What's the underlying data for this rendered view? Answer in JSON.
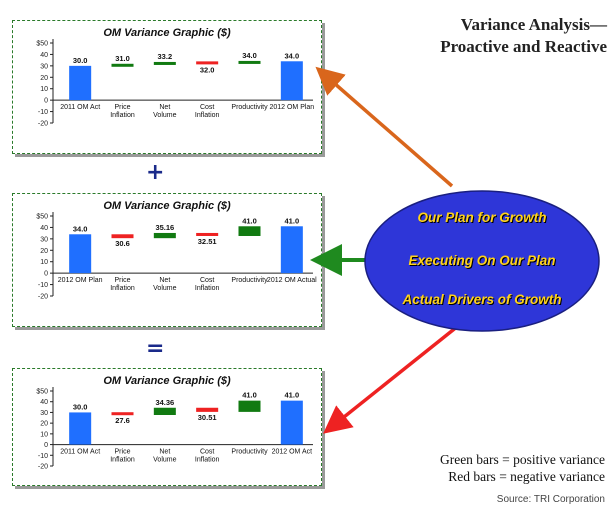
{
  "title": "Variance Analysis— Proactive and Reactive",
  "operators": {
    "plus": "+",
    "equals": "="
  },
  "ellipse": {
    "color": "#2e36d8",
    "lines": [
      "Our Plan for Growth",
      "Executing On Our Plan",
      "Actual Drivers of Growth"
    ]
  },
  "legend": {
    "green": "Green bars = positive variance",
    "red": "Red bars = negative variance"
  },
  "source": "Source: TRI Corporation",
  "colors": {
    "total": "#1f6fff",
    "positive": "#117a11",
    "negative": "#ee2222",
    "arrow_top": "#d9661c",
    "arrow_mid": "#1f8a1f",
    "arrow_bot": "#ee2222"
  },
  "chart_data": [
    {
      "type": "bar",
      "subtype": "waterfall",
      "title": "OM Variance Graphic ($)",
      "ylim": [
        -20,
        50
      ],
      "ytick_labels": [
        "$50",
        "40",
        "30",
        "20",
        "10",
        "0",
        "-10",
        "-20"
      ],
      "categories": [
        "2011 OM Act",
        "Price Inflation",
        "Net Volume",
        "Cost Inflation",
        "Productivity",
        "2012 OM Plan"
      ],
      "bars": [
        {
          "kind": "total",
          "base": 0,
          "top": 30.0,
          "label": "30.0"
        },
        {
          "kind": "positive",
          "base": 30.0,
          "top": 31.0,
          "label": "31.0"
        },
        {
          "kind": "positive",
          "base": 31.0,
          "top": 33.2,
          "label": "33.2"
        },
        {
          "kind": "negative",
          "base": 33.2,
          "top": 32.0,
          "label": "32.0"
        },
        {
          "kind": "positive",
          "base": 32.0,
          "top": 34.0,
          "label": "34.0"
        },
        {
          "kind": "total",
          "base": 0,
          "top": 34.0,
          "label": "34.0"
        }
      ]
    },
    {
      "type": "bar",
      "subtype": "waterfall",
      "title": "OM Variance Graphic ($)",
      "ylim": [
        -20,
        50
      ],
      "ytick_labels": [
        "$50",
        "40",
        "30",
        "20",
        "10",
        "0",
        "-10",
        "-20"
      ],
      "categories": [
        "2012 OM Plan",
        "Price Inflation",
        "Net Volume",
        "Cost Inflation",
        "Productivity",
        "2012 OM Actual"
      ],
      "bars": [
        {
          "kind": "total",
          "base": 0,
          "top": 34.0,
          "label": "34.0"
        },
        {
          "kind": "negative",
          "base": 34.0,
          "top": 30.6,
          "label": "30.6"
        },
        {
          "kind": "positive",
          "base": 30.6,
          "top": 35.16,
          "label": "35.16"
        },
        {
          "kind": "negative",
          "base": 35.16,
          "top": 32.51,
          "label": "32.51"
        },
        {
          "kind": "positive",
          "base": 32.51,
          "top": 41.0,
          "label": "41.0"
        },
        {
          "kind": "total",
          "base": 0,
          "top": 41.0,
          "label": "41.0"
        }
      ]
    },
    {
      "type": "bar",
      "subtype": "waterfall",
      "title": "OM Variance Graphic ($)",
      "ylim": [
        -20,
        50
      ],
      "ytick_labels": [
        "$50",
        "40",
        "30",
        "20",
        "10",
        "0",
        "-10",
        "-20"
      ],
      "categories": [
        "2011 OM Act",
        "Price Inflation",
        "Net Volume",
        "Cost Inflation",
        "Productivity",
        "2012 OM Act"
      ],
      "bars": [
        {
          "kind": "total",
          "base": 0,
          "top": 30.0,
          "label": "30.0"
        },
        {
          "kind": "negative",
          "base": 30.0,
          "top": 27.6,
          "label": "27.6"
        },
        {
          "kind": "positive",
          "base": 27.6,
          "top": 34.36,
          "label": "34.36"
        },
        {
          "kind": "negative",
          "base": 34.36,
          "top": 30.51,
          "label": "30.51"
        },
        {
          "kind": "positive",
          "base": 30.51,
          "top": 41.0,
          "label": "41.0"
        },
        {
          "kind": "total",
          "base": 0,
          "top": 41.0,
          "label": "41.0"
        }
      ]
    }
  ]
}
